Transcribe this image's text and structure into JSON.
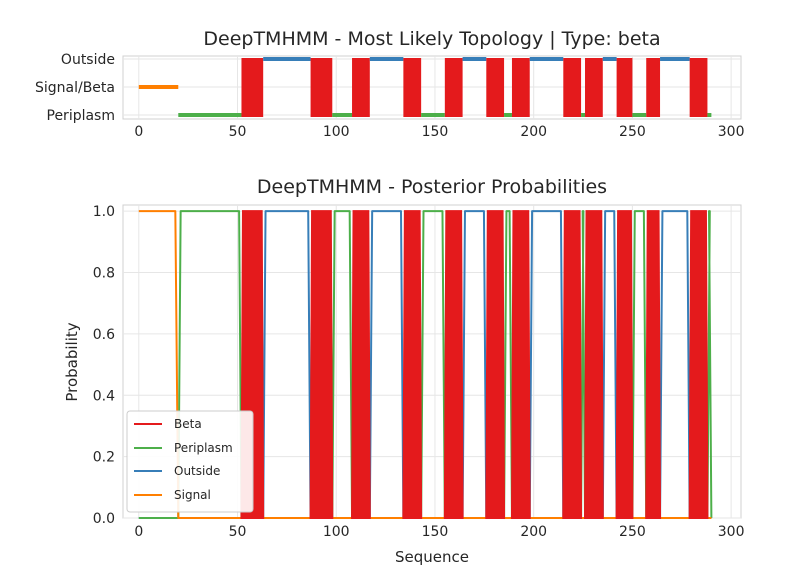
{
  "chart_data": [
    {
      "type": "line",
      "title": "DeepTMHMM - Most Likely Topology | Type: beta",
      "xlabel": "",
      "ylabel": "",
      "xlim": [
        -8,
        305
      ],
      "xticks": [
        0,
        50,
        100,
        150,
        200,
        250,
        300
      ],
      "ycategories": [
        "Outside",
        "Signal/Beta",
        "Periplasm"
      ],
      "grid": true,
      "colors": {
        "Beta": "#e41a1c",
        "Periplasm": "#4daf4a",
        "Outside": "#377eb8",
        "Signal": "#ff7f00"
      },
      "segments": [
        {
          "state": "Signal",
          "start": 0,
          "end": 20
        },
        {
          "state": "Periplasm",
          "start": 20,
          "end": 52
        },
        {
          "state": "Beta",
          "start": 52,
          "end": 63
        },
        {
          "state": "Outside",
          "start": 63,
          "end": 87
        },
        {
          "state": "Beta",
          "start": 87,
          "end": 98
        },
        {
          "state": "Periplasm",
          "start": 98,
          "end": 108
        },
        {
          "state": "Beta",
          "start": 108,
          "end": 117
        },
        {
          "state": "Outside",
          "start": 117,
          "end": 134
        },
        {
          "state": "Beta",
          "start": 134,
          "end": 143
        },
        {
          "state": "Periplasm",
          "start": 143,
          "end": 155
        },
        {
          "state": "Beta",
          "start": 155,
          "end": 164
        },
        {
          "state": "Outside",
          "start": 164,
          "end": 176
        },
        {
          "state": "Beta",
          "start": 176,
          "end": 185
        },
        {
          "state": "Periplasm",
          "start": 185,
          "end": 189
        },
        {
          "state": "Beta",
          "start": 189,
          "end": 198
        },
        {
          "state": "Outside",
          "start": 198,
          "end": 215
        },
        {
          "state": "Beta",
          "start": 215,
          "end": 224
        },
        {
          "state": "Periplasm",
          "start": 224,
          "end": 226
        },
        {
          "state": "Beta",
          "start": 226,
          "end": 235
        },
        {
          "state": "Outside",
          "start": 235,
          "end": 242
        },
        {
          "state": "Beta",
          "start": 242,
          "end": 250
        },
        {
          "state": "Periplasm",
          "start": 250,
          "end": 257
        },
        {
          "state": "Beta",
          "start": 257,
          "end": 264
        },
        {
          "state": "Outside",
          "start": 264,
          "end": 279
        },
        {
          "state": "Beta",
          "start": 279,
          "end": 288
        },
        {
          "state": "Periplasm",
          "start": 288,
          "end": 290
        }
      ]
    },
    {
      "type": "line",
      "title": "DeepTMHMM - Posterior Probabilities",
      "xlabel": "Sequence",
      "ylabel": "Probability",
      "xlim": [
        -8,
        305
      ],
      "ylim": [
        0.0,
        1.02
      ],
      "xticks": [
        0,
        50,
        100,
        150,
        200,
        250,
        300
      ],
      "yticks": [
        "0.0",
        "0.2",
        "0.4",
        "0.6",
        "0.8",
        "1.0"
      ],
      "grid": true,
      "legend_position": "lower-left",
      "series": [
        {
          "name": "Beta",
          "color": "#e41a1c"
        },
        {
          "name": "Periplasm",
          "color": "#4daf4a"
        },
        {
          "name": "Outside",
          "color": "#377eb8"
        },
        {
          "name": "Signal",
          "color": "#ff7f00"
        }
      ],
      "sequence_length": 290,
      "note_series_values": "Each series is 1.0 within its state's segments (see top panel) and 0.0 elsewhere, with short transitions; Beta segments are rendered as densely oscillating filled regions."
    }
  ],
  "titles": {
    "top": "DeepTMHMM - Most Likely Topology | Type: beta",
    "bottom": "DeepTMHMM - Posterior Probabilities"
  },
  "labels": {
    "xlabel": "Sequence",
    "ylabel": "Probability"
  },
  "legend": [
    "Beta",
    "Periplasm",
    "Outside",
    "Signal"
  ]
}
